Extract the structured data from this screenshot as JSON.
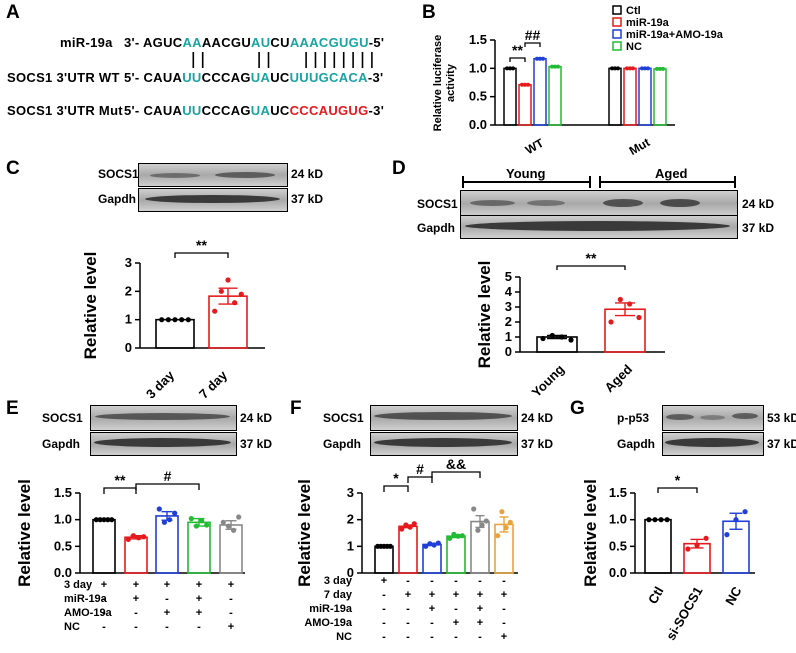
{
  "panels": {
    "A": "A",
    "B": "B",
    "C": "C",
    "D": "D",
    "E": "E",
    "F": "F",
    "G": "G"
  },
  "panelA": {
    "rows": [
      {
        "label": "miR-19a",
        "dir5": "3'- ",
        "dir3": "-5'",
        "segments": [
          [
            "AGUC",
            "k"
          ],
          [
            "AA",
            "t"
          ],
          [
            "AACGU",
            "k"
          ],
          [
            "AU",
            "t"
          ],
          [
            "CU",
            "k"
          ],
          [
            "AAACGUGU",
            "t"
          ]
        ]
      },
      {
        "label": "SOCS1 3'UTR WT",
        "dir5": "5'- ",
        "dir3": "-3'",
        "segments": [
          [
            "CAUA",
            "k"
          ],
          [
            "UU",
            "t"
          ],
          [
            "CCCAG",
            "k"
          ],
          [
            "UA",
            "t"
          ],
          [
            "UC",
            "k"
          ],
          [
            "UUUGCACA",
            "t"
          ]
        ]
      },
      {
        "label": "SOCS1 3'UTR Mut",
        "dir5": "5'- ",
        "dir3": "-3'",
        "segments": [
          [
            "CAUA",
            "k"
          ],
          [
            "UU",
            "t"
          ],
          [
            "CCCAG",
            "k"
          ],
          [
            "UA",
            "t"
          ],
          [
            "UC",
            "k"
          ],
          [
            "CCCAUGUG",
            "r"
          ]
        ]
      }
    ],
    "colors": {
      "teal": "#1aa3a3",
      "red": "#e41a1c"
    }
  },
  "panelB": {
    "legend": [
      {
        "name": "Ctl",
        "color": "#000000"
      },
      {
        "name": "miR-19a",
        "color": "#e41a1c"
      },
      {
        "name": "miR-19a+AMO-19a",
        "color": "#1f3fd6"
      },
      {
        "name": "NC",
        "color": "#22bb33"
      }
    ],
    "ylabel": "Relative luciferase activity",
    "ylabel_lines": [
      "Relative luciferase",
      "activity"
    ],
    "yticks": [
      "0.0",
      "0.5",
      "1.0",
      "1.5"
    ],
    "ylim": [
      0,
      1.5
    ],
    "groups": [
      "WT",
      "Mut"
    ],
    "values": [
      [
        1.0,
        0.71,
        1.17,
        1.03
      ],
      [
        1.0,
        1.0,
        1.0,
        0.99
      ]
    ],
    "sig": [
      "**",
      "##"
    ]
  },
  "panelC": {
    "blots": [
      {
        "name": "SOCS1",
        "size": "24 kD"
      },
      {
        "name": "Gapdh",
        "size": "37 kD"
      }
    ],
    "ylabel": "Relative level",
    "yticks": [
      "0",
      "1",
      "2",
      "3"
    ],
    "ylim": [
      0,
      3
    ],
    "categories": [
      "3 day",
      "7 day"
    ],
    "values": [
      1.0,
      1.83
    ],
    "colors": [
      "#000000",
      "#e41a1c"
    ],
    "sig": "**"
  },
  "panelD": {
    "groups": [
      "Young",
      "Aged"
    ],
    "blots": [
      {
        "name": "SOCS1",
        "size": "24 kD"
      },
      {
        "name": "Gapdh",
        "size": "37 kD"
      }
    ],
    "ylabel": "Relative level",
    "yticks": [
      "0",
      "1",
      "2",
      "3",
      "4",
      "5"
    ],
    "ylim": [
      0,
      5
    ],
    "categories": [
      "Young",
      "Aged"
    ],
    "values": [
      1.0,
      2.85
    ],
    "colors": [
      "#000000",
      "#e41a1c"
    ],
    "sig": "**"
  },
  "panelE": {
    "blots": [
      {
        "name": "SOCS1",
        "size": "24 kD"
      },
      {
        "name": "Gapdh",
        "size": "37 kD"
      }
    ],
    "ylabel": "Relative level",
    "yticks": [
      "0.0",
      "0.5",
      "1.0",
      "1.5"
    ],
    "ylim": [
      0,
      1.5
    ],
    "values": [
      1.0,
      0.67,
      1.07,
      0.95,
      0.9
    ],
    "colors": [
      "#000000",
      "#e41a1c",
      "#1f3fd6",
      "#22bb33",
      "#888888"
    ],
    "sig": [
      "**",
      "#"
    ],
    "table": [
      {
        "label": "3 day",
        "cells": [
          "+",
          "+",
          "+",
          "+",
          "+"
        ]
      },
      {
        "label": "miR-19a",
        "cells": [
          "-",
          "+",
          "-",
          "+",
          "-"
        ]
      },
      {
        "label": "AMO-19a",
        "cells": [
          "-",
          "-",
          "+",
          "+",
          "-"
        ]
      },
      {
        "label": "NC",
        "cells": [
          "-",
          "-",
          "-",
          "-",
          "+"
        ]
      }
    ]
  },
  "panelF": {
    "blots": [
      {
        "name": "SOCS1",
        "size": "24 kD"
      },
      {
        "name": "Gapdh",
        "size": "37 kD"
      }
    ],
    "ylabel": "Relative level",
    "yticks": [
      "0",
      "1",
      "2",
      "3"
    ],
    "ylim": [
      0,
      3
    ],
    "values": [
      1.0,
      1.75,
      1.07,
      1.38,
      1.93,
      1.82
    ],
    "colors": [
      "#000000",
      "#e41a1c",
      "#1f3fd6",
      "#22bb33",
      "#888888",
      "#e8a33d"
    ],
    "sig": [
      "*",
      "#",
      "&&"
    ],
    "table": [
      {
        "label": "3 day",
        "cells": [
          "+",
          "-",
          "-",
          "-",
          "-",
          "-"
        ]
      },
      {
        "label": "7 day",
        "cells": [
          "-",
          "+",
          "+",
          "+",
          "+",
          "+"
        ]
      },
      {
        "label": "miR-19a",
        "cells": [
          "-",
          "-",
          "+",
          "-",
          "+",
          "-"
        ]
      },
      {
        "label": "AMO-19a",
        "cells": [
          "-",
          "-",
          "-",
          "+",
          "+",
          "-"
        ]
      },
      {
        "label": "NC",
        "cells": [
          "-",
          "-",
          "-",
          "-",
          "-",
          "+"
        ]
      }
    ]
  },
  "panelG": {
    "blots": [
      {
        "name": "p-p53",
        "size": "53 kD"
      },
      {
        "name": "Gapdh",
        "size": "37 kD"
      }
    ],
    "ylabel": "Relative level",
    "yticks": [
      "0.0",
      "0.5",
      "1.0",
      "1.5"
    ],
    "ylim": [
      0,
      1.5
    ],
    "categories": [
      "Ctl",
      "si-SOCS1",
      "NC"
    ],
    "values": [
      1.0,
      0.55,
      0.97
    ],
    "colors": [
      "#000000",
      "#e41a1c",
      "#1f3fd6"
    ],
    "sig": "*"
  }
}
